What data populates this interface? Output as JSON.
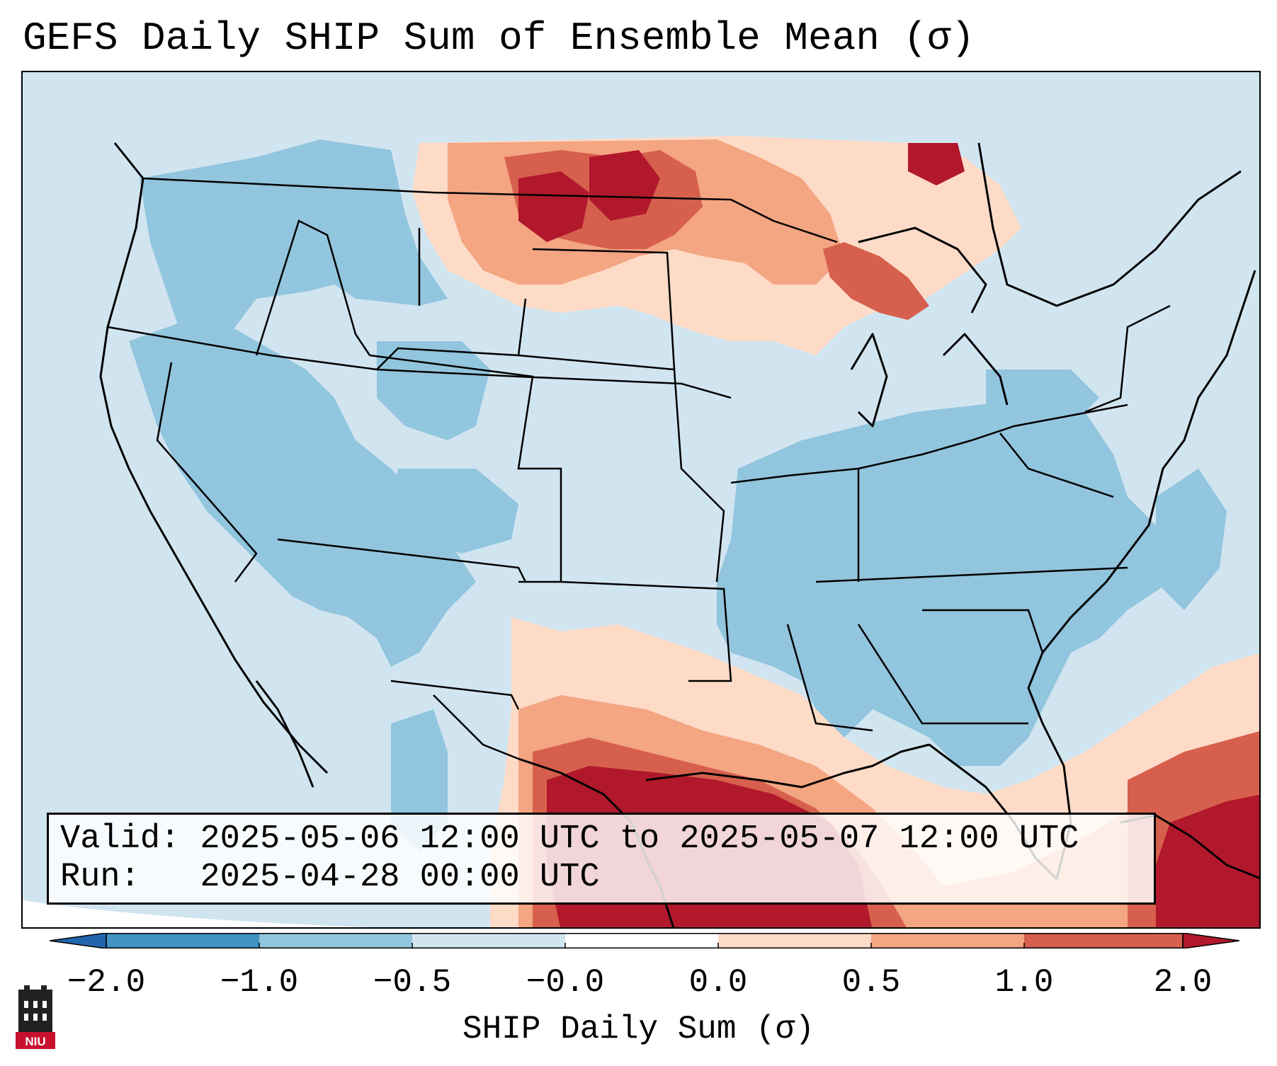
{
  "title": "GEFS Daily SHIP Sum of Ensemble Mean (σ)",
  "info": {
    "valid": "Valid: 2025-05-06 12:00 UTC to 2025-05-07 12:00 UTC",
    "run": "Run:   2025-04-28 00:00 UTC"
  },
  "colorbar": {
    "label": "SHIP Daily Sum (σ)",
    "ticks": [
      "−2.0",
      "−1.0",
      "−0.5",
      "−0.0",
      "0.0",
      "0.5",
      "1.0",
      "2.0"
    ],
    "colors": {
      "below": "#2166ac",
      "bins": [
        "#4393c3",
        "#92c5de",
        "#d1e5f0",
        "#ffffff",
        "#fddbc7",
        "#f4a582",
        "#d6604d"
      ],
      "above": "#b2182b"
    }
  },
  "logo": {
    "text": "NIU"
  },
  "map_regions": {
    "background": "#d1e5f0",
    "negative_fill": "#92c5de",
    "positive_light": "#fddbc7",
    "positive_mid": "#f4a582",
    "positive_strong": "#d6604d",
    "positive_extreme": "#b2182b"
  }
}
